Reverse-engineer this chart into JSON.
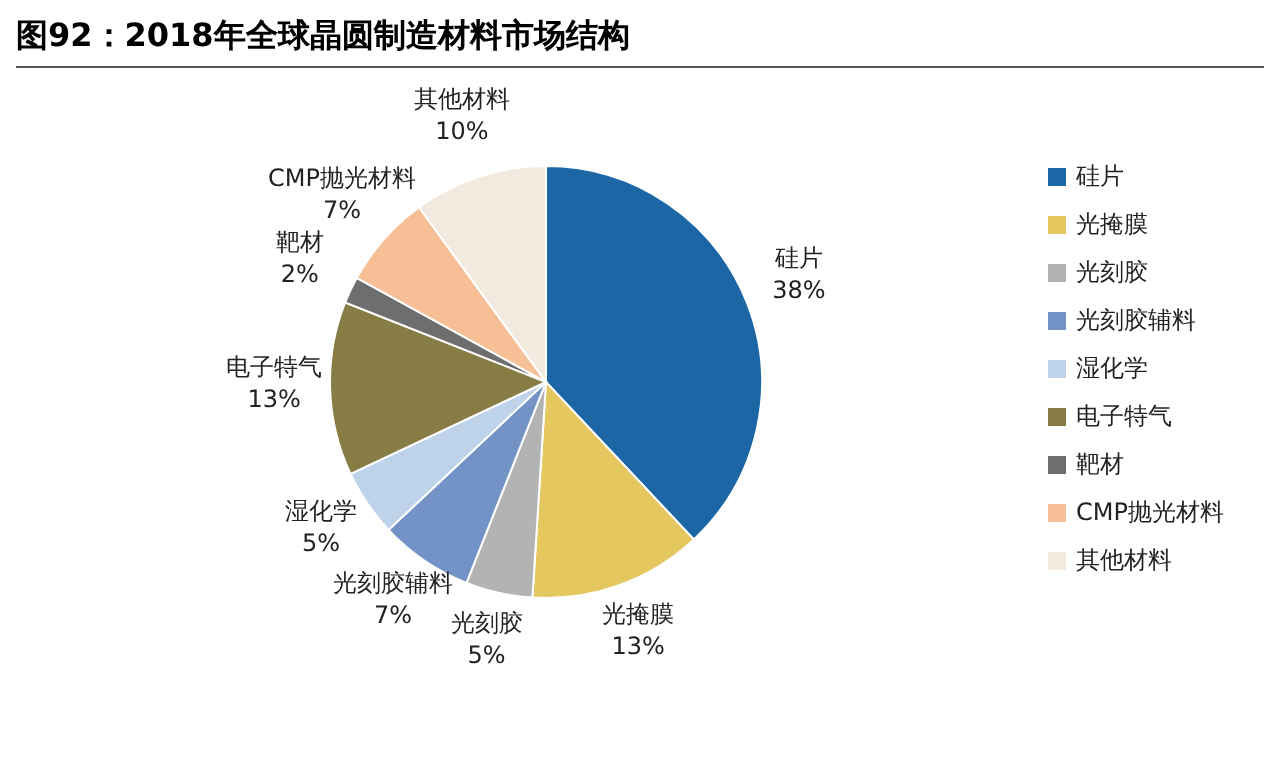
{
  "chart_data": {
    "type": "pie",
    "title": "图92：2018年全球晶圆制造材料市场结构",
    "categories": [
      "硅片",
      "光掩膜",
      "光刻胶",
      "光刻胶辅料",
      "湿化学",
      "电子特气",
      "靶材",
      "CMP抛光材料",
      "其他材料"
    ],
    "values": [
      38,
      13,
      5,
      7,
      5,
      13,
      2,
      7,
      10
    ],
    "colors": [
      "#1c66a6",
      "#e5c75f",
      "#b3b3b3",
      "#7393c6",
      "#bed2ea",
      "#877c44",
      "#6e6e6e",
      "#f6bf96",
      "#f2eadf"
    ],
    "value_labels": [
      "38%",
      "13%",
      "5%",
      "7%",
      "5%",
      "13%",
      "2%",
      "7%",
      "10%"
    ],
    "legend": "right"
  }
}
